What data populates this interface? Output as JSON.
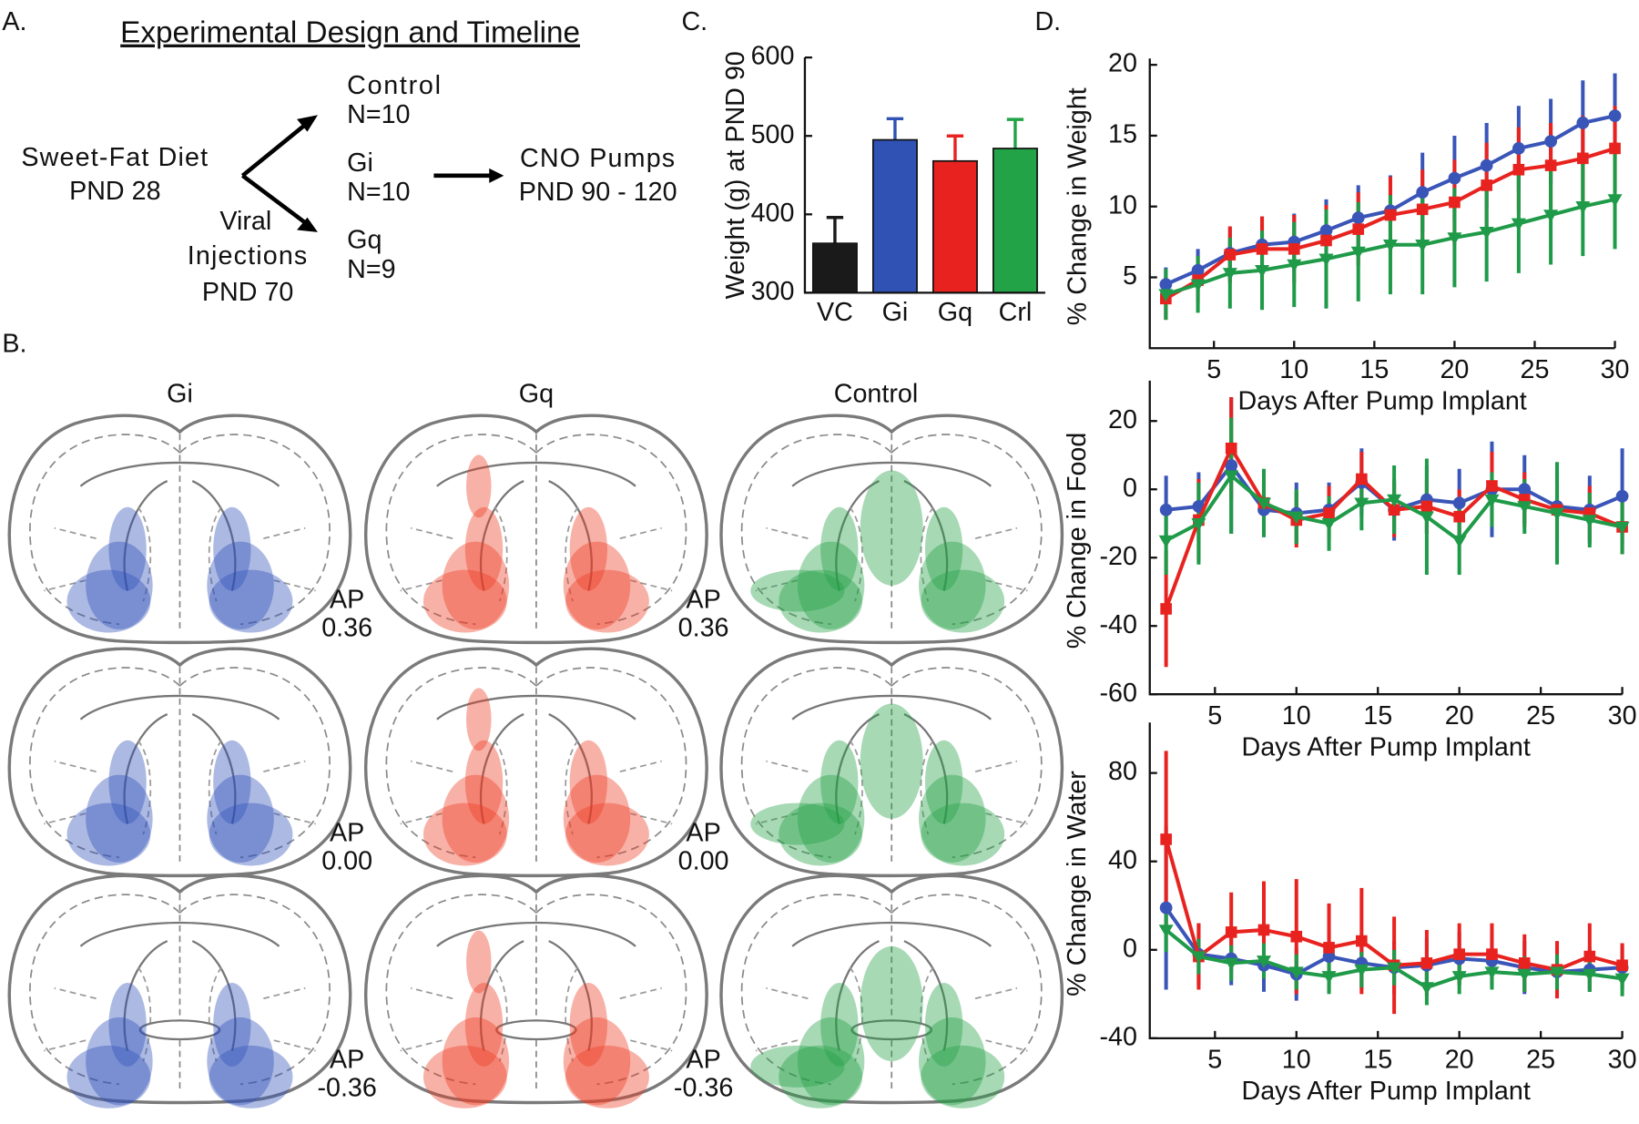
{
  "panel_a": {
    "label": "A.",
    "title": "Experimental Design and Timeline",
    "diet": [
      "Sweet-Fat Diet",
      "PND 28"
    ],
    "injections": [
      "Viral",
      "Injections",
      "PND 70"
    ],
    "groups": [
      [
        "Control",
        "N=10"
      ],
      [
        "Gi",
        "N=10"
      ],
      [
        "Gq",
        "N=9"
      ]
    ],
    "pumps": [
      "CNO Pumps",
      "PND 90 - 120"
    ]
  },
  "panel_b": {
    "label": "B.",
    "columns": [
      "Gi",
      "Gq",
      "Control"
    ],
    "sections": [
      [
        "AP",
        "0.36"
      ],
      [
        "AP",
        "0.00"
      ],
      [
        "AP",
        "-0.36"
      ]
    ]
  },
  "chart_data": [
    {
      "type": "bar",
      "panel_label": "C.",
      "ylabel": "Weight (g) at PND 90",
      "categories": [
        "VC",
        "Gi",
        "Gq",
        "Crl"
      ],
      "values": [
        363,
        495,
        468,
        484
      ],
      "errors": [
        33,
        27,
        32,
        37
      ],
      "colors": [
        "#1a1a1a",
        "#2f52b4",
        "#e8231f",
        "#23a347"
      ],
      "ylim": [
        300,
        600
      ],
      "yticks": [
        300,
        400,
        500,
        600
      ]
    },
    {
      "type": "line",
      "panel_label": "D.",
      "ylabel": "% Change in Weight",
      "xlabel": "Days After Pump Implant",
      "x": [
        2,
        4,
        6,
        8,
        10,
        12,
        14,
        16,
        18,
        20,
        22,
        24,
        26,
        28,
        30
      ],
      "xlim": [
        1,
        30
      ],
      "xticks": [
        5,
        10,
        15,
        20,
        25,
        30
      ],
      "ylim": [
        0,
        20
      ],
      "yticks": [
        5,
        10,
        15,
        20
      ],
      "series": [
        {
          "color": "#3a55b8",
          "marker": "circle",
          "values": [
            4.5,
            5.5,
            6.7,
            7.3,
            7.5,
            8.3,
            9.2,
            9.7,
            11.0,
            12.0,
            12.9,
            14.1,
            14.6,
            15.9,
            16.4
          ],
          "errors": [
            1.2,
            1.5,
            1.8,
            2.0,
            2.0,
            2.2,
            2.3,
            2.5,
            2.8,
            3.0,
            3.0,
            3.0,
            3.0,
            3.0,
            3.0
          ]
        },
        {
          "color": "#e8231f",
          "marker": "square",
          "values": [
            3.5,
            4.8,
            6.6,
            7.0,
            7.0,
            7.6,
            8.4,
            9.4,
            9.8,
            10.3,
            11.5,
            12.6,
            12.9,
            13.4,
            14.1
          ],
          "errors": [
            1.5,
            1.6,
            2.0,
            2.3,
            2.4,
            2.5,
            2.6,
            2.7,
            2.8,
            3.0,
            3.0,
            3.0,
            3.0,
            3.0,
            3.0
          ]
        },
        {
          "color": "#1f9a48",
          "marker": "triangle",
          "values": [
            3.8,
            4.5,
            5.3,
            5.5,
            5.9,
            6.3,
            6.8,
            7.3,
            7.3,
            7.8,
            8.2,
            8.8,
            9.4,
            10.0,
            10.5
          ],
          "errors": [
            1.8,
            2.0,
            2.5,
            2.8,
            3.0,
            3.5,
            3.5,
            3.5,
            3.5,
            3.5,
            3.5,
            3.5,
            3.5,
            3.5,
            3.5
          ]
        }
      ]
    },
    {
      "type": "line",
      "ylabel": "% Change in Food",
      "xlabel": "Days After Pump Implant",
      "x": [
        2,
        4,
        6,
        8,
        10,
        12,
        14,
        16,
        18,
        20,
        22,
        24,
        26,
        28,
        30
      ],
      "xlim": [
        1,
        30
      ],
      "xticks": [
        5,
        10,
        15,
        20,
        25,
        30
      ],
      "ylim": [
        -60,
        30
      ],
      "yticks": [
        -60,
        -40,
        -20,
        0,
        20
      ],
      "series": [
        {
          "color": "#3a55b8",
          "marker": "circle",
          "values": [
            -6,
            -5,
            7,
            -6,
            -7,
            -6,
            2,
            -6,
            -3,
            -4,
            0,
            0,
            -5,
            -6,
            -2
          ],
          "errors": [
            10,
            10,
            20,
            8,
            9,
            8,
            10,
            9,
            10,
            10,
            14,
            10,
            10,
            10,
            14
          ]
        },
        {
          "color": "#e8231f",
          "marker": "square",
          "values": [
            -35,
            -9,
            12,
            -4,
            -9,
            -7,
            3,
            -6,
            -5,
            -8,
            1,
            -3,
            -6,
            -7,
            -11
          ],
          "errors": [
            17,
            12,
            15,
            8,
            8,
            8,
            8,
            8,
            8,
            8,
            10,
            8,
            8,
            8,
            8
          ]
        },
        {
          "color": "#1f9a48",
          "marker": "triangle",
          "values": [
            -15,
            -10,
            4,
            -4,
            -8,
            -10,
            -4,
            -3,
            -8,
            -15,
            -3,
            -5,
            -7,
            -9,
            -11
          ],
          "errors": [
            10,
            12,
            17,
            10,
            8,
            8,
            8,
            10,
            17,
            10,
            8,
            8,
            15,
            8,
            8
          ]
        }
      ]
    },
    {
      "type": "line",
      "ylabel": "% Change in Water",
      "xlabel": "Days After Pump Implant",
      "x": [
        2,
        4,
        6,
        8,
        10,
        12,
        14,
        16,
        18,
        20,
        22,
        24,
        26,
        28,
        30
      ],
      "xlim": [
        1,
        30
      ],
      "xticks": [
        5,
        10,
        15,
        20,
        25,
        30
      ],
      "ylim": [
        -40,
        100
      ],
      "yticks": [
        -40,
        0,
        40,
        80
      ],
      "series": [
        {
          "color": "#3a55b8",
          "marker": "circle",
          "values": [
            19,
            -2,
            -4,
            -7,
            -11,
            -3,
            -6,
            -8,
            -7,
            -4,
            -5,
            -8,
            -10,
            -9,
            -8
          ],
          "errors": [
            37,
            14,
            12,
            12,
            12,
            12,
            12,
            12,
            12,
            12,
            12,
            12,
            10,
            10,
            10
          ]
        },
        {
          "color": "#e8231f",
          "marker": "square",
          "values": [
            50,
            -3,
            8,
            9,
            6,
            1,
            4,
            -7,
            -6,
            -2,
            -2,
            -6,
            -9,
            -3,
            -7
          ],
          "errors": [
            40,
            15,
            18,
            22,
            26,
            20,
            24,
            22,
            15,
            14,
            14,
            13,
            13,
            15,
            10
          ]
        },
        {
          "color": "#1f9a48",
          "marker": "triangle",
          "values": [
            9,
            -3,
            -6,
            -5,
            -10,
            -12,
            -9,
            -8,
            -17,
            -12,
            -10,
            -11,
            -10,
            -11,
            -13
          ],
          "errors": [
            10,
            8,
            8,
            8,
            8,
            8,
            8,
            8,
            8,
            8,
            8,
            8,
            8,
            8,
            8
          ]
        }
      ]
    }
  ]
}
